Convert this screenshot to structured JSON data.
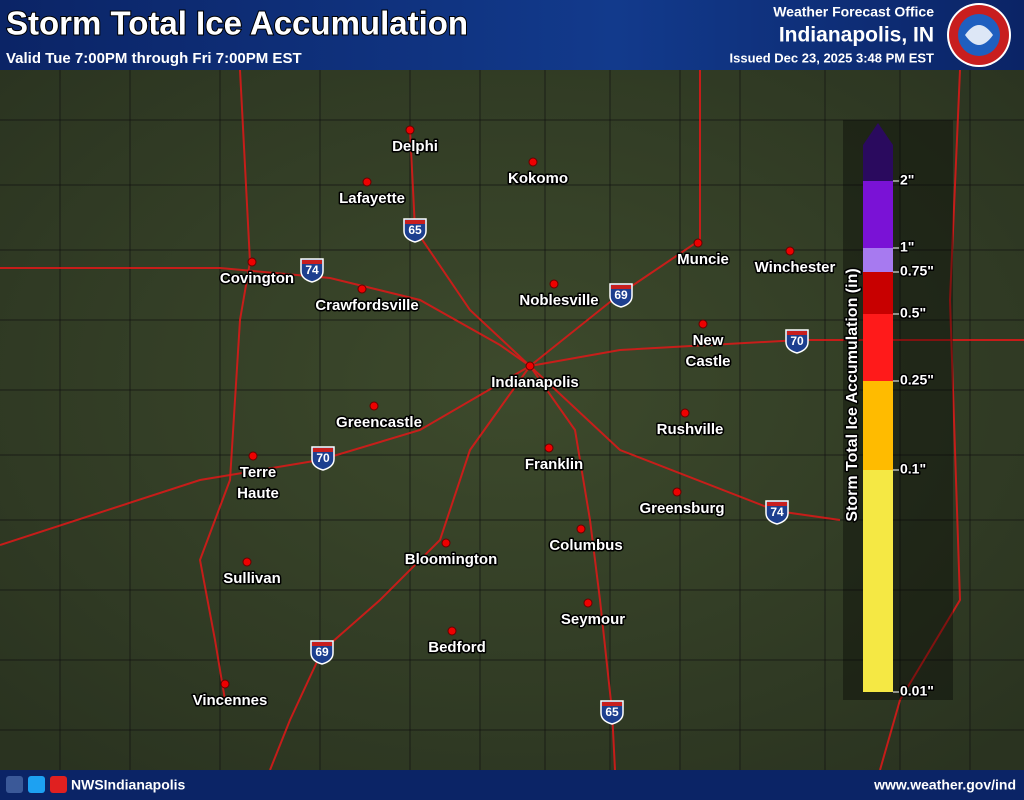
{
  "header": {
    "title": "Storm Total Ice Accumulation",
    "subtitle": "Valid Tue 7:00PM through Fri 7:00PM EST",
    "office_line": "Weather Forecast Office",
    "office": "Indianapolis, IN",
    "issued": "Issued Dec 23, 2025 3:48 PM EST"
  },
  "legend": {
    "title": "Storm Total Ice Accumulation (in)",
    "ticks": [
      "0.01\"",
      "0.1\"",
      "0.25\"",
      "0.5\"",
      "0.75\"",
      "1\"",
      "2\""
    ]
  },
  "cities": [
    [
      "Delphi"
    ],
    [
      "Lafayette"
    ],
    [
      "Kokomo"
    ],
    [
      "Covington"
    ],
    [
      "Crawfordsville"
    ],
    [
      "Noblesville"
    ],
    [
      "Muncie"
    ],
    [
      "Winchester"
    ],
    [
      "New",
      "Castle"
    ],
    [
      "Indianapolis"
    ],
    [
      "Greencastle"
    ],
    [
      "Rushville"
    ],
    [
      "Franklin"
    ],
    [
      "Terre",
      "Haute"
    ],
    [
      "Greensburg"
    ],
    [
      "Columbus"
    ],
    [
      "Bloomington"
    ],
    [
      "Sullivan"
    ],
    [
      "Seymour"
    ],
    [
      "Bedford"
    ],
    [
      "Vincennes"
    ]
  ],
  "shields": [
    "65",
    "74",
    "69",
    "70",
    "70",
    "74",
    "69",
    "65"
  ],
  "footer": {
    "social": "NWSIndianapolis",
    "url": "www.weather.gov/ind"
  }
}
